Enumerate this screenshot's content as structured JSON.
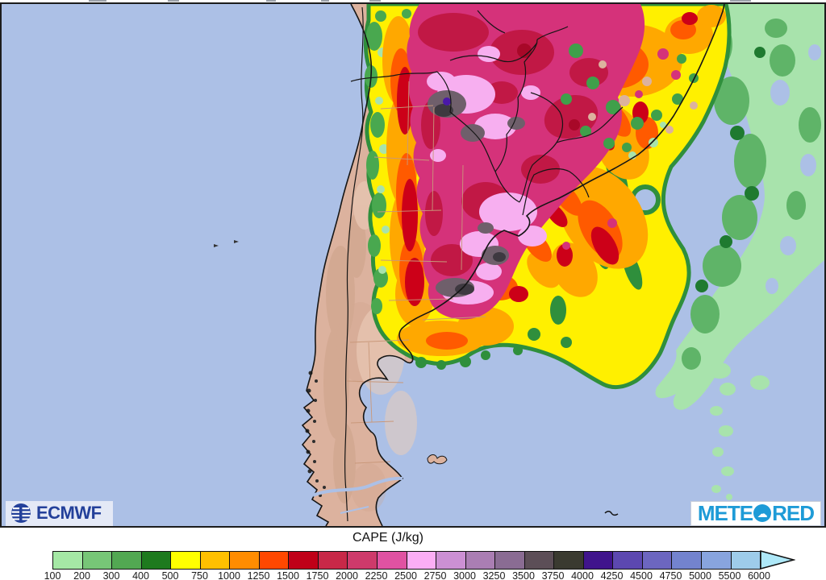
{
  "legend": {
    "title": "CAPE (J/kg)",
    "values": [
      "100",
      "200",
      "300",
      "400",
      "500",
      "750",
      "1000",
      "1250",
      "1500",
      "1750",
      "2000",
      "2250",
      "2500",
      "2750",
      "3000",
      "3250",
      "3500",
      "3750",
      "4000",
      "4250",
      "4500",
      "4750",
      "5000",
      "5500",
      "6000"
    ],
    "colors": [
      "#A5E8A5",
      "#77C677",
      "#52A852",
      "#1E7A1E",
      "#FFFF00",
      "#FFC000",
      "#FF8C00",
      "#FF4800",
      "#C00018",
      "#C82848",
      "#CE3A6B",
      "#E052A2",
      "#FBAEF5",
      "#CC90D4",
      "#AA7EB3",
      "#8A6C93",
      "#5C4E57",
      "#3A3A30",
      "#40148C",
      "#5C48B0",
      "#6C66C0",
      "#7383CE",
      "#88A4DE",
      "#9ECCEA"
    ],
    "arrow_color": "#AEE8F8"
  },
  "branding": {
    "ecmwf": {
      "label": "ECMWF",
      "color": "#23409A"
    },
    "meteored": {
      "part1": "METE",
      "part2": "RED",
      "cloud_icon": "☁",
      "color": "#1E9BD7"
    }
  },
  "map": {
    "ocean_color": "#ACC0E6",
    "land_color": "#DCB29E"
  }
}
